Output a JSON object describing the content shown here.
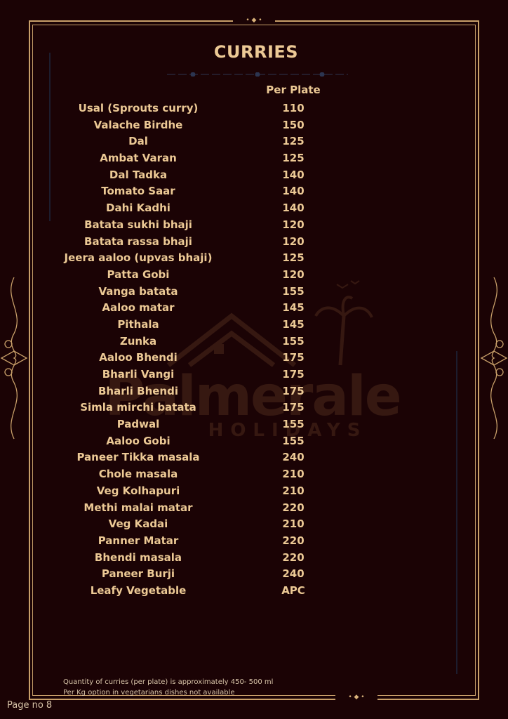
{
  "title": "CURRIES",
  "column_header": "Per Plate",
  "items": [
    {
      "name": "Usal (Sprouts curry)",
      "price": "110"
    },
    {
      "name": "Valache Birdhe",
      "price": "150"
    },
    {
      "name": "Dal",
      "price": "125"
    },
    {
      "name": "Ambat Varan",
      "price": "125"
    },
    {
      "name": "Dal Tadka",
      "price": "140"
    },
    {
      "name": "Tomato Saar",
      "price": "140"
    },
    {
      "name": "Dahi Kadhi",
      "price": "140"
    },
    {
      "name": "Batata sukhi bhaji",
      "price": "120"
    },
    {
      "name": "Batata rassa bhaji",
      "price": "120"
    },
    {
      "name": "Jeera aaloo (upvas bhaji)",
      "price": "125"
    },
    {
      "name": "Patta Gobi",
      "price": "120"
    },
    {
      "name": "Vanga batata",
      "price": "155"
    },
    {
      "name": "Aaloo matar",
      "price": "145"
    },
    {
      "name": "Pithala",
      "price": "145"
    },
    {
      "name": "Zunka",
      "price": "155"
    },
    {
      "name": "Aaloo Bhendi",
      "price": "175"
    },
    {
      "name": "Bharli Vangi",
      "price": "175"
    },
    {
      "name": "Bharli Bhendi",
      "price": "175"
    },
    {
      "name": "Simla mirchi batata",
      "price": "175"
    },
    {
      "name": "Padwal",
      "price": "155"
    },
    {
      "name": "Aaloo Gobi",
      "price": "155"
    },
    {
      "name": "Paneer Tikka masala",
      "price": "240"
    },
    {
      "name": "Chole masala",
      "price": "210"
    },
    {
      "name": "Veg Kolhapuri",
      "price": "210"
    },
    {
      "name": "Methi malai matar",
      "price": "220"
    },
    {
      "name": "Veg Kadai",
      "price": "210"
    },
    {
      "name": "Panner Matar",
      "price": "220"
    },
    {
      "name": "Bhendi masala",
      "price": "220"
    },
    {
      "name": "Paneer Burji",
      "price": "240"
    },
    {
      "name": "Leafy Vegetable",
      "price": "APC"
    }
  ],
  "watermark": {
    "brand": "Palmerale",
    "sub": "HOLIDAYS"
  },
  "notes": [
    "Quantity of curries (per plate) is approximately 450- 500 ml",
    "Per Kg option in vegetarians dishes not available"
  ],
  "page_label": "Page no 8",
  "colors": {
    "background": "#1b0305",
    "gold": "#ecc995",
    "border": "#c9a06a"
  }
}
